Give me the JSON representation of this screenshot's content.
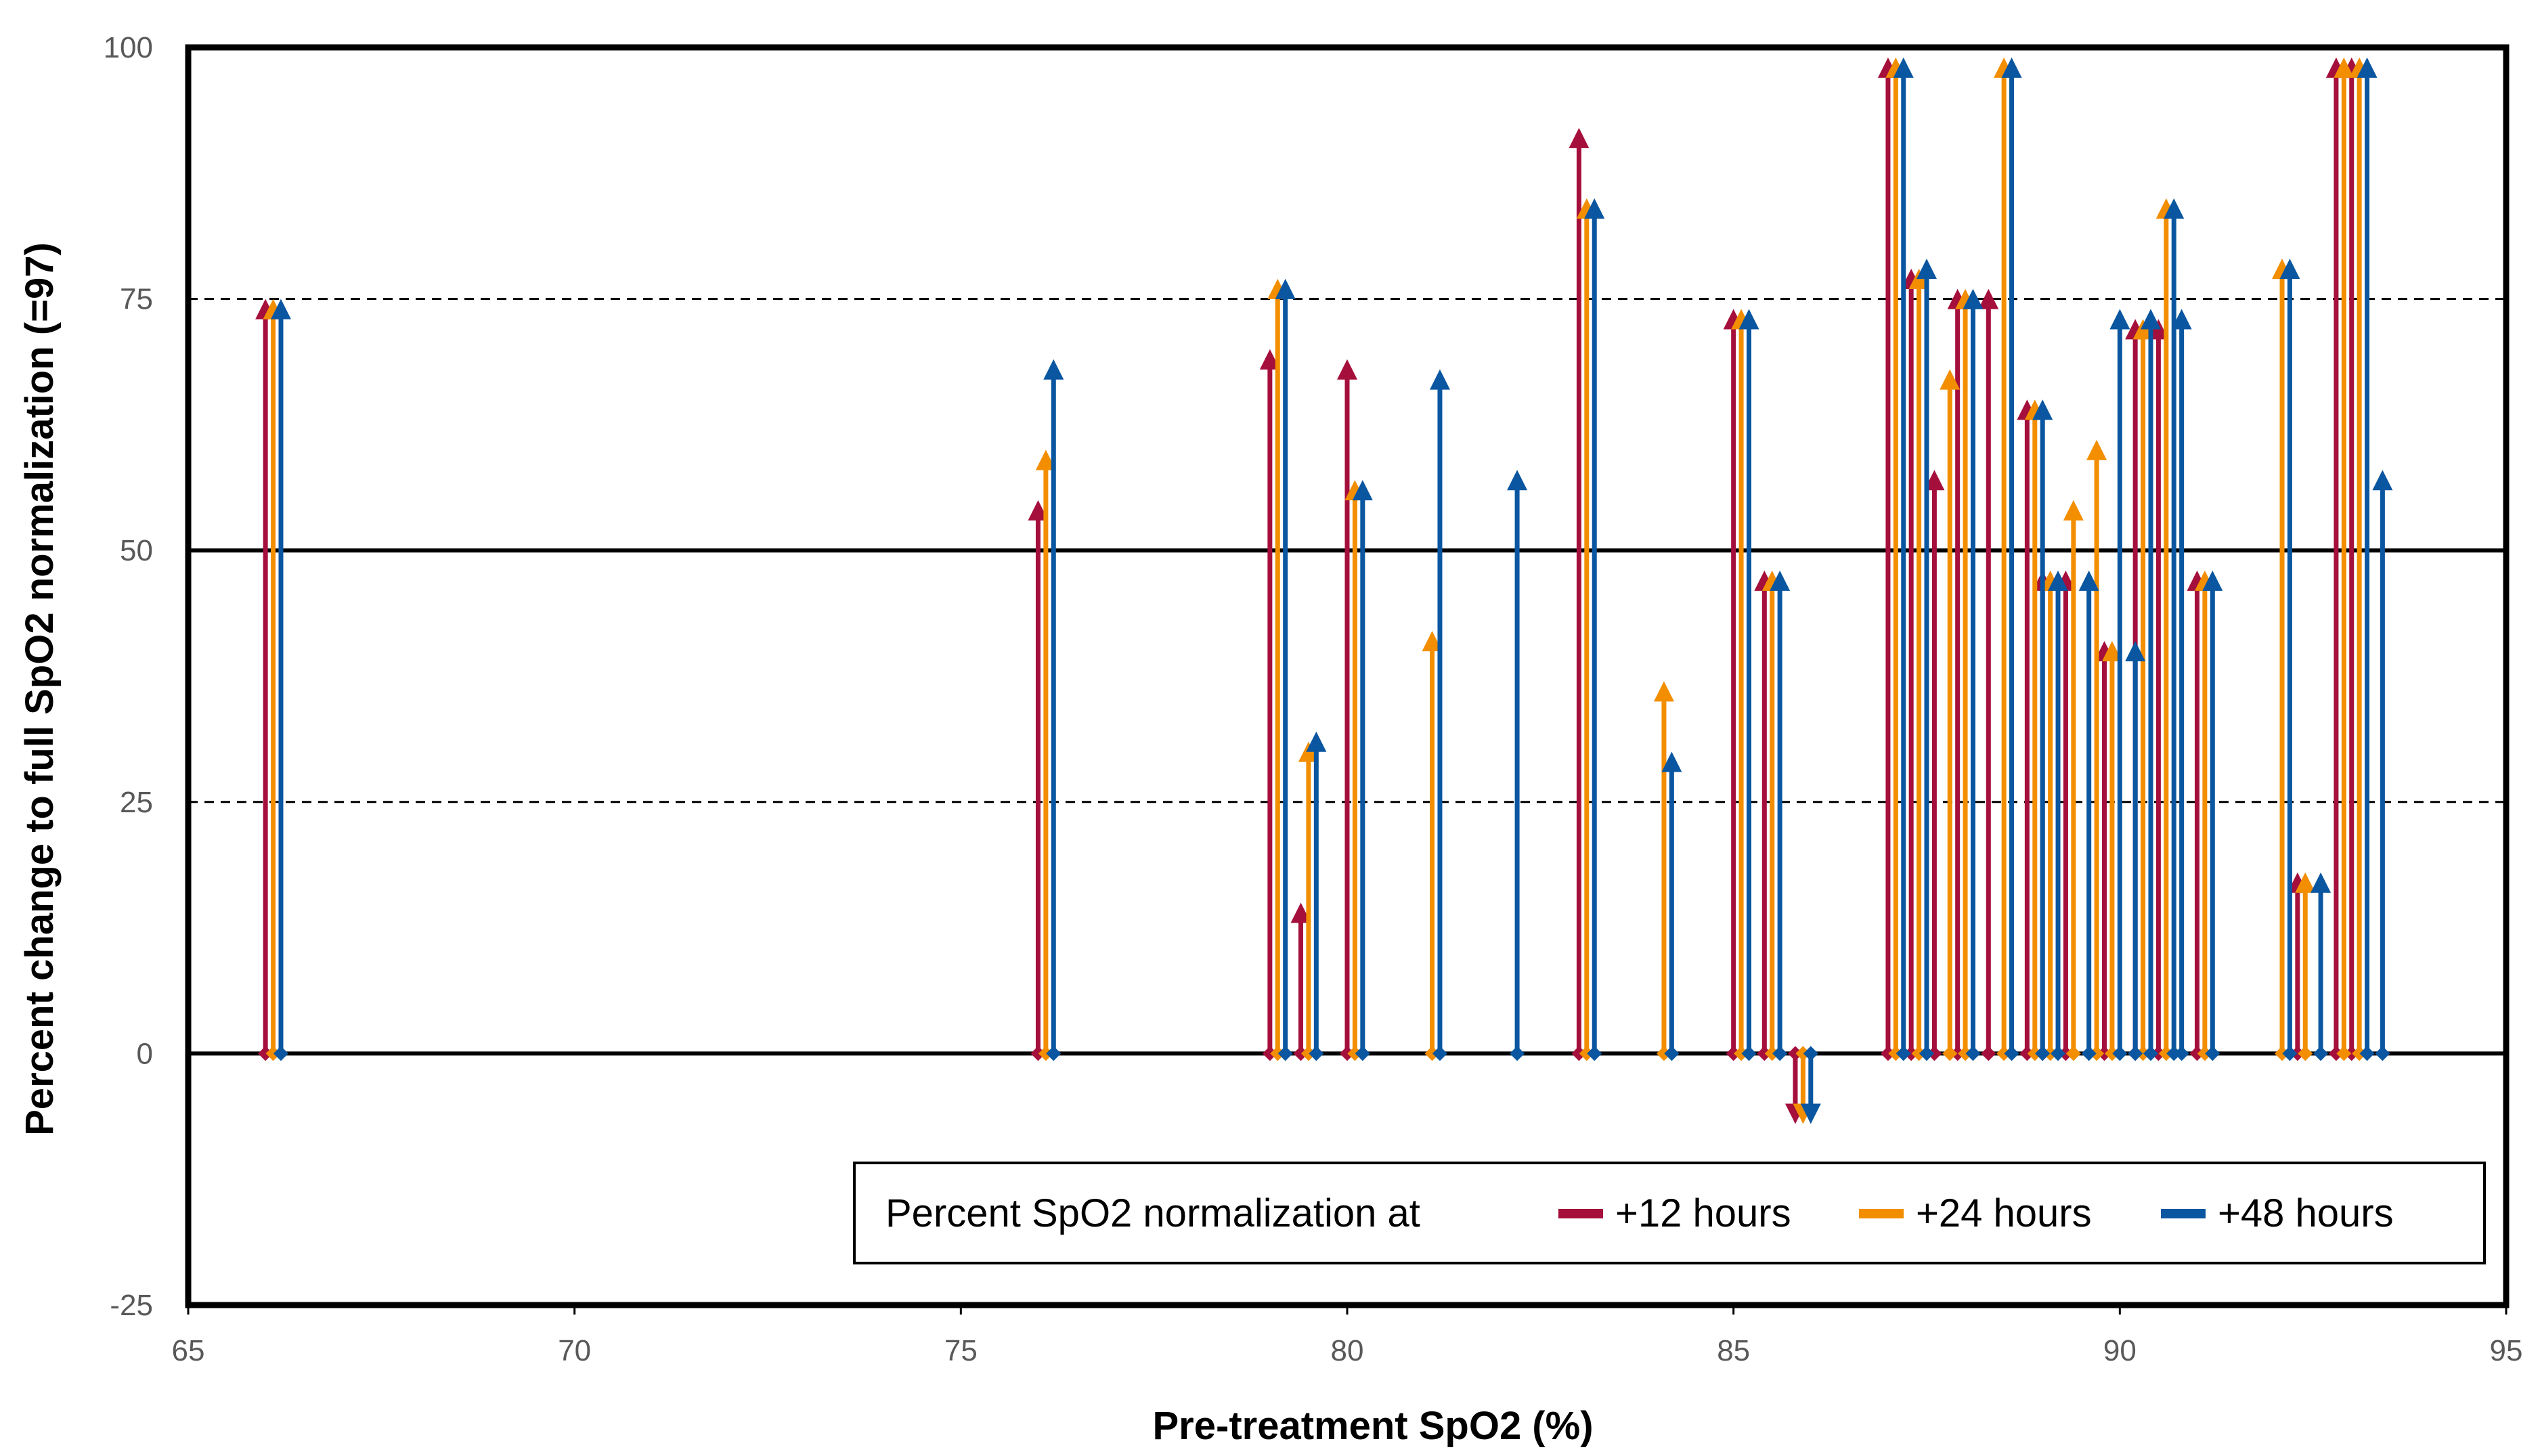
{
  "chart_data": {
    "type": "arrow-change",
    "title": "",
    "xlabel": "Pre-treatment SpO2 (%)",
    "ylabel": "Percent change to full SpO2 normalization (=97)",
    "xlim": [
      65,
      95
    ],
    "ylim": [
      -25,
      100
    ],
    "x_ticks": [
      "65",
      "70",
      "75",
      "80",
      "85",
      "90",
      "95"
    ],
    "y_ticks": [
      "-25",
      "0",
      "25",
      "50",
      "75",
      "100"
    ],
    "grid": {
      "solid_y": [
        0,
        50
      ],
      "dashed_y": [
        25,
        75
      ]
    },
    "legend": {
      "position": "bottom-right",
      "title": "Percent SpO2 normalization at",
      "items": [
        "+12 hours",
        "+24 hours",
        "+48 hours"
      ]
    },
    "colors": {
      "+12 hours": "#A50F3C",
      "+24 hours": "#F28E00",
      "+48 hours": "#0A56A0"
    },
    "series": [
      {
        "name": "+12 hours",
        "points": [
          {
            "x": 66.0,
            "y": 75
          },
          {
            "x": 76.0,
            "y": 55
          },
          {
            "x": 79.0,
            "y": 70
          },
          {
            "x": 79.4,
            "y": 15
          },
          {
            "x": 80.0,
            "y": 69
          },
          {
            "x": 83.0,
            "y": 92
          },
          {
            "x": 85.0,
            "y": 74
          },
          {
            "x": 85.4,
            "y": 48
          },
          {
            "x": 85.8,
            "y": -7
          },
          {
            "x": 87.0,
            "y": 99
          },
          {
            "x": 87.3,
            "y": 78
          },
          {
            "x": 87.6,
            "y": 58
          },
          {
            "x": 87.9,
            "y": 76
          },
          {
            "x": 88.3,
            "y": 76
          },
          {
            "x": 88.8,
            "y": 65
          },
          {
            "x": 89.0,
            "y": 48
          },
          {
            "x": 89.3,
            "y": 48
          },
          {
            "x": 89.8,
            "y": 41
          },
          {
            "x": 90.2,
            "y": 73
          },
          {
            "x": 90.5,
            "y": 73
          },
          {
            "x": 91.0,
            "y": 48
          },
          {
            "x": 92.3,
            "y": 18
          },
          {
            "x": 92.8,
            "y": 99
          },
          {
            "x": 93.0,
            "y": 99
          }
        ]
      },
      {
        "name": "+24 hours",
        "points": [
          {
            "x": 66.1,
            "y": 75
          },
          {
            "x": 76.1,
            "y": 60
          },
          {
            "x": 79.1,
            "y": 77
          },
          {
            "x": 79.5,
            "y": 31
          },
          {
            "x": 80.1,
            "y": 57
          },
          {
            "x": 81.1,
            "y": 42
          },
          {
            "x": 83.1,
            "y": 85
          },
          {
            "x": 84.1,
            "y": 37
          },
          {
            "x": 85.1,
            "y": 74
          },
          {
            "x": 85.5,
            "y": 48
          },
          {
            "x": 85.9,
            "y": -7
          },
          {
            "x": 87.1,
            "y": 99
          },
          {
            "x": 87.4,
            "y": 78
          },
          {
            "x": 87.8,
            "y": 68
          },
          {
            "x": 88.0,
            "y": 76
          },
          {
            "x": 88.5,
            "y": 99
          },
          {
            "x": 88.9,
            "y": 65
          },
          {
            "x": 89.1,
            "y": 48
          },
          {
            "x": 89.4,
            "y": 55
          },
          {
            "x": 89.7,
            "y": 61
          },
          {
            "x": 89.9,
            "y": 41
          },
          {
            "x": 90.3,
            "y": 73
          },
          {
            "x": 90.6,
            "y": 85
          },
          {
            "x": 91.1,
            "y": 48
          },
          {
            "x": 92.1,
            "y": 79
          },
          {
            "x": 92.4,
            "y": 18
          },
          {
            "x": 92.9,
            "y": 99
          },
          {
            "x": 93.1,
            "y": 99
          }
        ]
      },
      {
        "name": "+48 hours",
        "points": [
          {
            "x": 66.2,
            "y": 75
          },
          {
            "x": 76.2,
            "y": 69
          },
          {
            "x": 79.2,
            "y": 77
          },
          {
            "x": 79.6,
            "y": 32
          },
          {
            "x": 80.2,
            "y": 57
          },
          {
            "x": 81.2,
            "y": 68
          },
          {
            "x": 82.2,
            "y": 58
          },
          {
            "x": 83.2,
            "y": 85
          },
          {
            "x": 84.2,
            "y": 30
          },
          {
            "x": 85.2,
            "y": 74
          },
          {
            "x": 85.6,
            "y": 48
          },
          {
            "x": 86.0,
            "y": -7
          },
          {
            "x": 87.2,
            "y": 99
          },
          {
            "x": 87.5,
            "y": 79
          },
          {
            "x": 88.1,
            "y": 76
          },
          {
            "x": 88.6,
            "y": 99
          },
          {
            "x": 89.0,
            "y": 65
          },
          {
            "x": 89.2,
            "y": 48
          },
          {
            "x": 89.6,
            "y": 48
          },
          {
            "x": 90.0,
            "y": 74
          },
          {
            "x": 90.2,
            "y": 41
          },
          {
            "x": 90.4,
            "y": 74
          },
          {
            "x": 90.7,
            "y": 85
          },
          {
            "x": 90.8,
            "y": 74
          },
          {
            "x": 91.2,
            "y": 48
          },
          {
            "x": 92.2,
            "y": 79
          },
          {
            "x": 92.6,
            "y": 18
          },
          {
            "x": 93.2,
            "y": 99
          },
          {
            "x": 93.4,
            "y": 58
          }
        ]
      }
    ]
  }
}
